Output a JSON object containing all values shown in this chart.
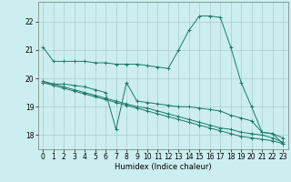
{
  "xlabel": "Humidex (Indice chaleur)",
  "background_color": "#cceef0",
  "grid_color": "#aacccc",
  "line_color": "#1a7a6a",
  "xlim": [
    -0.5,
    23.5
  ],
  "ylim": [
    17.5,
    22.7
  ],
  "yticks": [
    18,
    19,
    20,
    21,
    22
  ],
  "xticks": [
    0,
    1,
    2,
    3,
    4,
    5,
    6,
    7,
    8,
    9,
    10,
    11,
    12,
    13,
    14,
    15,
    16,
    17,
    18,
    19,
    20,
    21,
    22,
    23
  ],
  "series": [
    {
      "x": [
        0,
        1,
        2,
        3,
        4,
        5,
        6,
        7,
        8,
        9,
        10,
        11,
        12,
        13,
        14,
        15,
        16,
        17,
        18,
        19,
        20,
        21,
        22,
        23
      ],
      "y": [
        21.1,
        20.6,
        20.6,
        20.6,
        20.6,
        20.55,
        20.55,
        20.5,
        20.5,
        20.5,
        20.45,
        20.4,
        20.35,
        21.0,
        21.7,
        22.2,
        22.2,
        22.15,
        21.1,
        19.85,
        19.0,
        18.1,
        18.05,
        17.7
      ]
    },
    {
      "x": [
        0,
        1,
        2,
        3,
        4,
        5,
        6,
        7,
        8,
        9,
        10,
        11,
        12,
        13,
        14,
        15,
        16,
        17,
        18,
        19,
        20,
        21,
        22,
        23
      ],
      "y": [
        19.85,
        19.8,
        19.8,
        19.75,
        19.7,
        19.6,
        19.5,
        18.2,
        19.85,
        19.2,
        19.15,
        19.1,
        19.05,
        19.0,
        19.0,
        18.95,
        18.9,
        18.85,
        18.7,
        18.6,
        18.5,
        18.1,
        18.05,
        17.9
      ]
    },
    {
      "x": [
        0,
        1,
        2,
        3,
        4,
        5,
        6,
        7,
        8,
        9,
        10,
        11,
        12,
        13,
        14,
        15,
        16,
        17,
        18,
        19,
        20,
        21,
        22,
        23
      ],
      "y": [
        19.9,
        19.8,
        19.7,
        19.6,
        19.5,
        19.4,
        19.3,
        19.2,
        19.1,
        19.0,
        18.95,
        18.85,
        18.75,
        18.65,
        18.55,
        18.45,
        18.35,
        18.25,
        18.2,
        18.1,
        18.05,
        18.0,
        17.9,
        17.75
      ]
    },
    {
      "x": [
        0,
        1,
        2,
        3,
        4,
        5,
        6,
        7,
        8,
        9,
        10,
        11,
        12,
        13,
        14,
        15,
        16,
        17,
        18,
        19,
        20,
        21,
        22,
        23
      ],
      "y": [
        19.85,
        19.75,
        19.65,
        19.55,
        19.45,
        19.35,
        19.25,
        19.15,
        19.05,
        18.95,
        18.85,
        18.75,
        18.65,
        18.55,
        18.45,
        18.35,
        18.25,
        18.15,
        18.05,
        17.95,
        17.9,
        17.85,
        17.8,
        17.7
      ]
    }
  ]
}
